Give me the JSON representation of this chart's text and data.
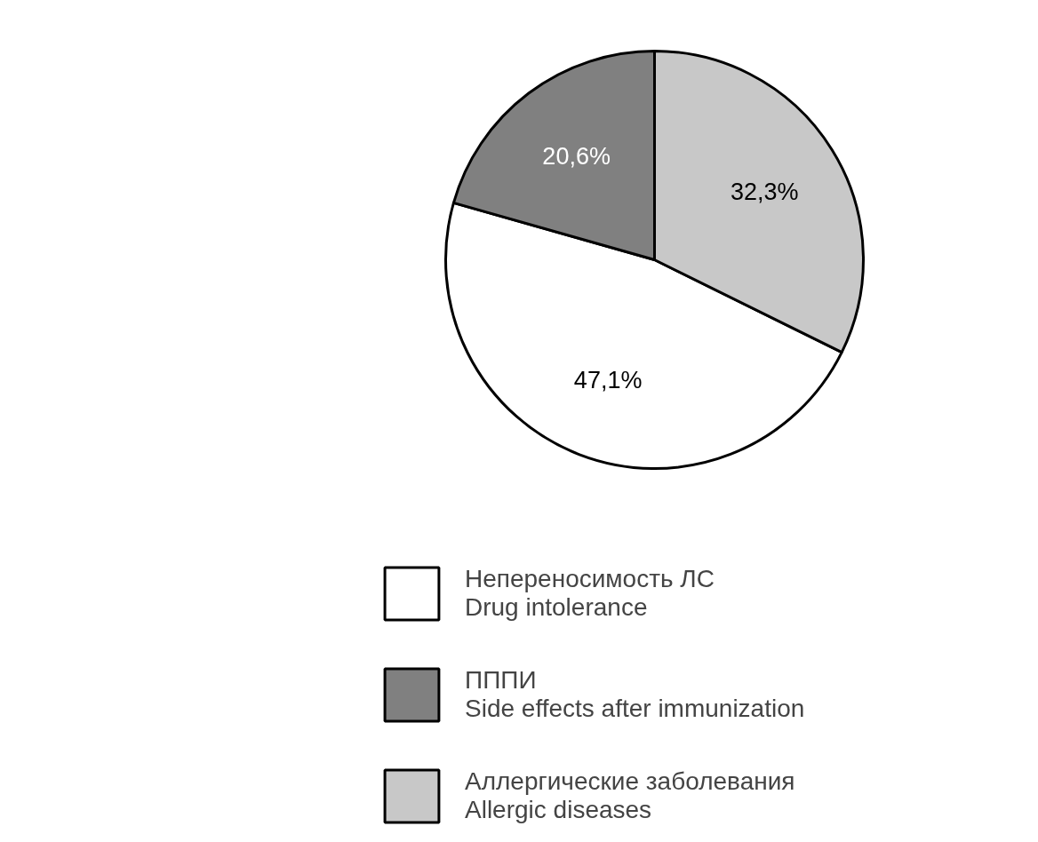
{
  "chart_data": {
    "type": "pie",
    "categories": [
      "Непереносимость ЛС\nDrug intolerance",
      "ПППИ\nSide effects after immunization",
      "Аллергические заболевания\nAllergic diseases"
    ],
    "values": [
      47.1,
      20.6,
      32.3
    ],
    "value_labels": [
      "47,1%",
      "20,6%",
      "32,3%"
    ],
    "colors": [
      "#ffffff",
      "#808080",
      "#c8c8c8"
    ],
    "legend": "bottom"
  }
}
